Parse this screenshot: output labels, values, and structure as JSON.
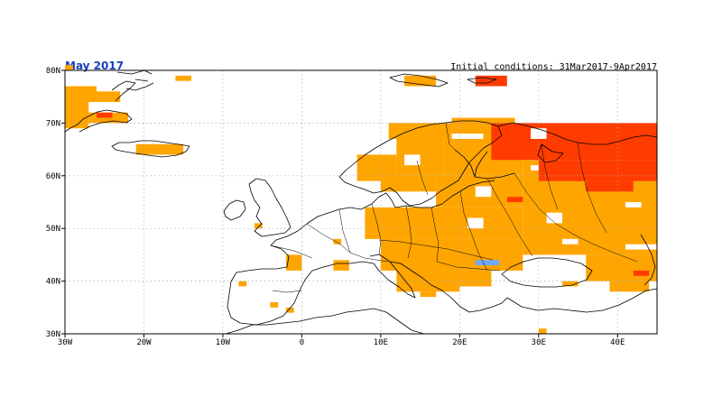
{
  "title": "May 2017",
  "subtitle": "Initial conditions: 31Mar2017-9Apr2017",
  "colors": {
    "title": "#1a3fbf",
    "warm": "#ffa500",
    "hot": "#ff3c00",
    "cool": "#6fa8ff",
    "coast": "#000000",
    "grid": "#aaaaaa"
  },
  "chart_data": {
    "type": "heatmap",
    "xlim": [
      -30,
      45
    ],
    "ylim": [
      30,
      80
    ],
    "x_ticks": [
      "30W",
      "20W",
      "10W",
      "0",
      "10E",
      "20E",
      "30E",
      "40E"
    ],
    "y_ticks": [
      "30N",
      "40N",
      "50N",
      "60N",
      "70N",
      "80N"
    ],
    "grid": true,
    "cell_deg": 1,
    "regions": [
      {
        "cls": "warm",
        "lon": [
          -30,
          -26
        ],
        "lat": [
          74,
          77
        ]
      },
      {
        "cls": "warm",
        "lon": [
          -26,
          -23
        ],
        "lat": [
          74,
          76
        ]
      },
      {
        "cls": "warm",
        "lon": [
          -30,
          -27
        ],
        "lat": [
          69,
          74
        ]
      },
      {
        "cls": "warm",
        "lon": [
          -27,
          -22
        ],
        "lat": [
          70,
          72
        ]
      },
      {
        "cls": "hot",
        "lon": [
          -26,
          -24
        ],
        "lat": [
          71,
          72
        ]
      },
      {
        "cls": "warm",
        "lon": [
          -21,
          -15
        ],
        "lat": [
          64,
          66
        ]
      },
      {
        "cls": "warm",
        "lon": [
          -16,
          -14
        ],
        "lat": [
          78,
          79
        ]
      },
      {
        "cls": "warm",
        "lon": [
          -30,
          -29
        ],
        "lat": [
          80,
          81
        ]
      },
      {
        "cls": "warm",
        "lon": [
          13,
          17
        ],
        "lat": [
          77,
          79
        ]
      },
      {
        "cls": "hot",
        "lon": [
          22,
          26
        ],
        "lat": [
          77,
          79
        ]
      },
      {
        "cls": "warm",
        "lon": [
          11,
          19
        ],
        "lat": [
          67,
          70
        ]
      },
      {
        "cls": "warm",
        "lon": [
          19,
          27
        ],
        "lat": [
          68,
          71
        ]
      },
      {
        "cls": "warm",
        "lon": [
          7,
          12
        ],
        "lat": [
          59,
          64
        ]
      },
      {
        "cls": "warm",
        "lon": [
          12,
          18
        ],
        "lat": [
          60,
          68
        ]
      },
      {
        "cls": "warm",
        "lon": [
          18,
          23
        ],
        "lat": [
          60,
          67
        ]
      },
      {
        "cls": "warm",
        "lon": [
          23,
          28
        ],
        "lat": [
          60,
          70
        ]
      },
      {
        "cls": "warm",
        "lon": [
          10,
          17
        ],
        "lat": [
          57,
          60
        ]
      },
      {
        "cls": "warm",
        "lon": [
          17,
          28
        ],
        "lat": [
          54,
          60
        ]
      },
      {
        "cls": "warm",
        "lon": [
          28,
          45
        ],
        "lat": [
          45,
          63
        ]
      },
      {
        "cls": "warm",
        "lon": [
          8,
          28
        ],
        "lat": [
          48,
          54
        ]
      },
      {
        "cls": "warm",
        "lon": [
          10,
          28
        ],
        "lat": [
          42,
          48
        ]
      },
      {
        "cls": "warm",
        "lon": [
          12,
          20
        ],
        "lat": [
          38,
          42
        ]
      },
      {
        "cls": "warm",
        "lon": [
          19,
          24
        ],
        "lat": [
          39,
          42
        ]
      },
      {
        "cls": "warm",
        "lon": [
          36,
          45
        ],
        "lat": [
          40,
          45
        ]
      },
      {
        "cls": "warm",
        "lon": [
          39,
          44
        ],
        "lat": [
          38,
          40
        ]
      },
      {
        "cls": "warm",
        "lon": [
          33,
          35
        ],
        "lat": [
          39,
          40
        ]
      },
      {
        "cls": "warm",
        "lon": [
          -8,
          -7
        ],
        "lat": [
          39,
          40
        ]
      },
      {
        "cls": "warm",
        "lon": [
          -2,
          0
        ],
        "lat": [
          42,
          45
        ]
      },
      {
        "cls": "warm",
        "lon": [
          4,
          6
        ],
        "lat": [
          42,
          44
        ]
      },
      {
        "cls": "warm",
        "lon": [
          -4,
          -3
        ],
        "lat": [
          35,
          36
        ]
      },
      {
        "cls": "warm",
        "lon": [
          -2,
          -1
        ],
        "lat": [
          34,
          35
        ]
      },
      {
        "cls": "warm",
        "lon": [
          30,
          31
        ],
        "lat": [
          30,
          31
        ]
      },
      {
        "cls": "warm",
        "lon": [
          15,
          17
        ],
        "lat": [
          37,
          38
        ]
      },
      {
        "cls": "warm",
        "lon": [
          4,
          5
        ],
        "lat": [
          47,
          48
        ]
      },
      {
        "cls": "warm",
        "lon": [
          -6,
          -5
        ],
        "lat": [
          50,
          51
        ]
      },
      {
        "cls": "hot",
        "lon": [
          24,
          45
        ],
        "lat": [
          63,
          70
        ]
      },
      {
        "cls": "hot",
        "lon": [
          30,
          45
        ],
        "lat": [
          59,
          63
        ]
      },
      {
        "cls": "hot",
        "lon": [
          36,
          42
        ],
        "lat": [
          57,
          59
        ]
      },
      {
        "cls": "hot",
        "lon": [
          26,
          28
        ],
        "lat": [
          55,
          56
        ]
      },
      {
        "cls": "hot",
        "lon": [
          42,
          44
        ],
        "lat": [
          41,
          42
        ]
      },
      {
        "cls": "blank",
        "lon": [
          29,
          31
        ],
        "lat": [
          67,
          69
        ]
      },
      {
        "cls": "blank",
        "lon": [
          22,
          24
        ],
        "lat": [
          56,
          58
        ]
      },
      {
        "cls": "blank",
        "lon": [
          21,
          23
        ],
        "lat": [
          50,
          52
        ]
      },
      {
        "cls": "blank",
        "lon": [
          31,
          33
        ],
        "lat": [
          51,
          53
        ]
      },
      {
        "cls": "blank",
        "lon": [
          13,
          15
        ],
        "lat": [
          62,
          64
        ]
      },
      {
        "cls": "blank",
        "lon": [
          29,
          30
        ],
        "lat": [
          61,
          62
        ]
      },
      {
        "cls": "blank",
        "lon": [
          41,
          43
        ],
        "lat": [
          54,
          55
        ]
      },
      {
        "cls": "blank",
        "lon": [
          33,
          35
        ],
        "lat": [
          47,
          48
        ]
      },
      {
        "cls": "blank",
        "lon": [
          41,
          45
        ],
        "lat": [
          46,
          47
        ]
      },
      {
        "cls": "cool",
        "lon": [
          22,
          25
        ],
        "lat": [
          43,
          44
        ]
      }
    ]
  }
}
